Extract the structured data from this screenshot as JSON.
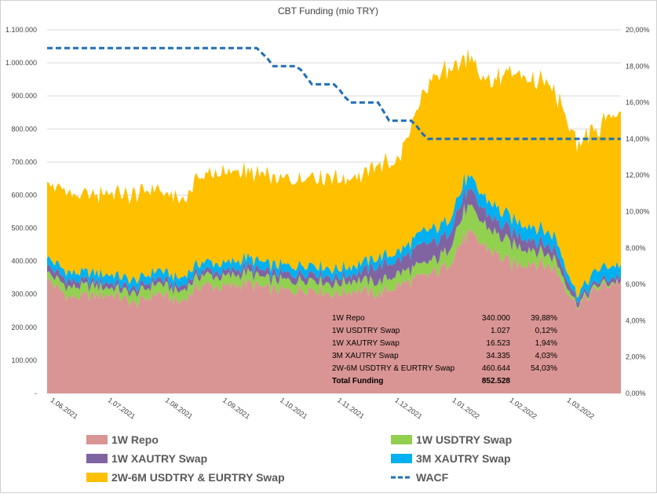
{
  "chart_data": {
    "type": "area",
    "title": "CBT Funding (mio TRY)",
    "x_ticks": [
      "1.06.2021",
      "1.07.2021",
      "1.08.2021",
      "1.09.2021",
      "1.10.2021",
      "1.11.2021",
      "1.12.2021",
      "1.01.2022",
      "1.02.2022",
      "1.03.2022"
    ],
    "y_left": {
      "min": 0,
      "max": 1100000,
      "ticks": [
        "-",
        "100.000",
        "200.000",
        "300.000",
        "400.000",
        "500.000",
        "600.000",
        "700.000",
        "800.000",
        "900.000",
        "1.000.000",
        "1.100.000"
      ]
    },
    "y_right": {
      "min": 0,
      "max": 20,
      "ticks": [
        "0,00%",
        "2,00%",
        "4,00%",
        "6,00%",
        "8,00%",
        "10,00%",
        "12,00%",
        "14,00%",
        "16,00%",
        "18,00%",
        "20,00%"
      ]
    },
    "x_domain": [
      0,
      104
    ],
    "anchors_x": [
      0,
      4,
      8,
      12,
      16,
      20,
      24,
      28,
      32,
      36,
      40,
      44,
      48,
      52,
      56,
      60,
      64,
      68,
      72,
      76,
      80,
      84,
      88,
      92,
      96,
      100,
      104
    ],
    "series": [
      {
        "name": "1W Repo",
        "color": "#D99594",
        "values": [
          345000,
          290000,
          295000,
          300000,
          270000,
          305000,
          275000,
          330000,
          320000,
          335000,
          315000,
          310000,
          320000,
          300000,
          315000,
          300000,
          330000,
          350000,
          380000,
          480000,
          440000,
          390000,
          400000,
          380000,
          265000,
          320000,
          340000
        ]
      },
      {
        "name": "1W USDTRY Swap",
        "color": "#92D050",
        "values": [
          20000,
          30000,
          30000,
          20000,
          30000,
          30000,
          30000,
          30000,
          30000,
          30000,
          30000,
          30000,
          30000,
          30000,
          30000,
          35000,
          35000,
          35000,
          40000,
          80000,
          60000,
          60000,
          40000,
          30000,
          5000,
          10000,
          1027
        ]
      },
      {
        "name": "1W XAUTRY Swap",
        "color": "#8064A2",
        "values": [
          20000,
          20000,
          15000,
          15000,
          15000,
          15000,
          15000,
          15000,
          15000,
          20000,
          20000,
          20000,
          20000,
          20000,
          20000,
          50000,
          40000,
          60000,
          50000,
          50000,
          40000,
          40000,
          30000,
          30000,
          15000,
          10000,
          16523
        ]
      },
      {
        "name": "3M XAUTRY Swap",
        "color": "#00B0F0",
        "values": [
          25000,
          25000,
          25000,
          25000,
          25000,
          25000,
          25000,
          25000,
          25000,
          25000,
          25000,
          25000,
          25000,
          25000,
          25000,
          25000,
          25000,
          40000,
          40000,
          40000,
          40000,
          40000,
          40000,
          40000,
          15000,
          40000,
          34335
        ]
      },
      {
        "name": "2W-6M USDTRY & EURTRY Swap",
        "color": "#FFC000",
        "values": [
          230000,
          235000,
          230000,
          245000,
          260000,
          250000,
          230000,
          260000,
          280000,
          260000,
          270000,
          260000,
          270000,
          270000,
          265000,
          280000,
          280000,
          420000,
          470000,
          360000,
          360000,
          440000,
          440000,
          440000,
          460000,
          430000,
          460644
        ]
      },
      {
        "name": "WACF",
        "color": "#1F6FB5",
        "axis": "right",
        "x": [
          0,
          5,
          10,
          15,
          20,
          25,
          30,
          35,
          38,
          39,
          40,
          41,
          45,
          46,
          47,
          48,
          52,
          53,
          54,
          55,
          59,
          60,
          61,
          62,
          66,
          67,
          68,
          69,
          72,
          74,
          75,
          76,
          80,
          85,
          90,
          95,
          100,
          104
        ],
        "values": [
          19,
          19,
          19,
          19,
          19,
          19,
          19,
          19,
          19,
          18.7,
          18.4,
          18,
          18,
          17.8,
          17.4,
          17,
          17,
          16.7,
          16.3,
          16,
          16,
          16,
          15.5,
          15,
          15,
          14.7,
          14.3,
          14,
          14,
          14,
          14,
          14,
          14,
          14,
          14,
          14,
          14,
          14
        ]
      }
    ],
    "summary_table": {
      "rows": [
        {
          "label": "1W Repo",
          "value": "340.000",
          "share": "39,88%"
        },
        {
          "label": "1W USDTRY Swap",
          "value": "1.027",
          "share": "0,12%"
        },
        {
          "label": "1W XAUTRY Swap",
          "value": "16.523",
          "share": "1,94%"
        },
        {
          "label": "3M XAUTRY Swap",
          "value": "34.335",
          "share": "4,03%"
        },
        {
          "label": "2W-6M USDTRY & EURTRY Swap",
          "value": "460.644",
          "share": "54,03%"
        }
      ],
      "total": {
        "label": "Total Funding",
        "value": "852.528"
      }
    },
    "legend": [
      {
        "label": "1W Repo",
        "color": "#D99594",
        "style": "box"
      },
      {
        "label": "1W USDTRY Swap",
        "color": "#92D050",
        "style": "box"
      },
      {
        "label": "1W XAUTRY Swap",
        "color": "#8064A2",
        "style": "box"
      },
      {
        "label": "3M XAUTRY Swap",
        "color": "#00B0F0",
        "style": "box"
      },
      {
        "label": "2W-6M USDTRY & EURTRY Swap",
        "color": "#FFC000",
        "style": "box"
      },
      {
        "label": "WACF",
        "color": "#1F6FB5",
        "style": "dash"
      }
    ],
    "legend_placement": "bottom",
    "grid": true
  }
}
